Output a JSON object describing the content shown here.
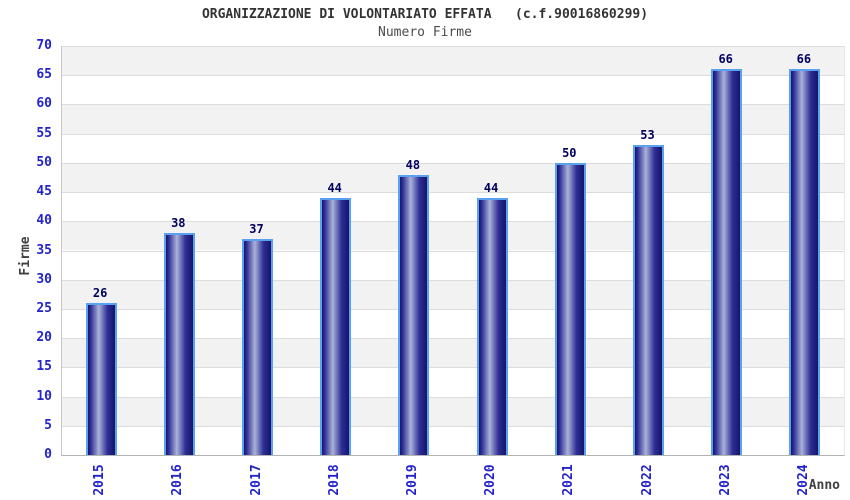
{
  "chart_data": {
    "type": "bar",
    "title": "ORGANIZZAZIONE DI VOLONTARIATO EFFATA   (c.f.90016860299)",
    "subtitle": "Numero Firme",
    "categories": [
      "2015",
      "2016",
      "2017",
      "2018",
      "2019",
      "2020",
      "2021",
      "2022",
      "2023",
      "2024"
    ],
    "values": [
      26,
      38,
      37,
      44,
      48,
      44,
      50,
      53,
      66,
      66
    ],
    "xlabel": "Anno",
    "ylabel": "Firme",
    "ylim": [
      0,
      70
    ],
    "ytick_step": 5,
    "yticks": [
      0,
      5,
      10,
      15,
      20,
      25,
      30,
      35,
      40,
      45,
      50,
      55,
      60,
      65,
      70
    ],
    "grid": "horizontal",
    "legend": "none",
    "bar_value_labels_shown": true,
    "x_tick_rotation_degrees": -90,
    "colors": {
      "axis_text_blue": "#2323cc",
      "bar_value_label": "#000060",
      "bar_border": "#5aa2f0",
      "bar_dark": "#15156a",
      "bar_mid": "#2e2e96",
      "bar_highlight": "#aab2d8",
      "band_gray": "#f2f2f2",
      "gridline": "#dcdcdc",
      "title_text": "#333333",
      "subtitle_text": "#4d4d4d",
      "axis_label_text": "#404040",
      "background": "#ffffff"
    }
  }
}
